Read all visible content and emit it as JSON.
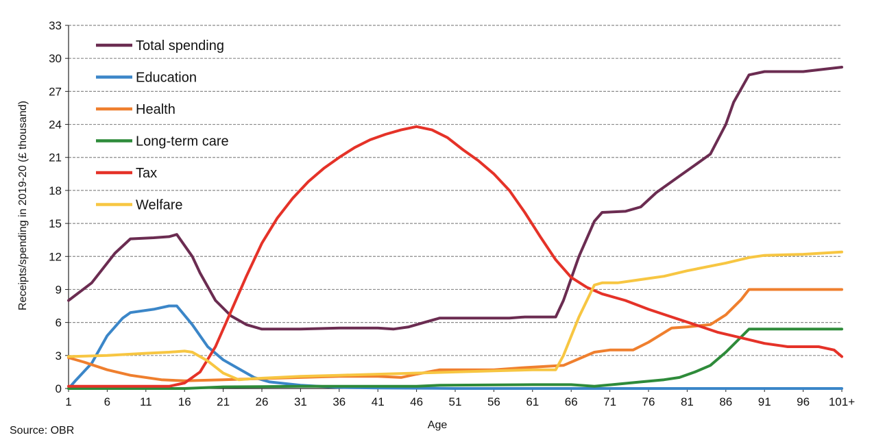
{
  "source": "Source: OBR",
  "chart_data": {
    "type": "line",
    "xlabel": "Age",
    "ylabel": "Receipts/spending in 2019-20 (£ thousand)",
    "x_ticks": [
      "1",
      "6",
      "11",
      "16",
      "21",
      "26",
      "31",
      "36",
      "41",
      "46",
      "51",
      "56",
      "61",
      "66",
      "71",
      "76",
      "81",
      "86",
      "91",
      "96",
      "101+"
    ],
    "xlim": [
      1,
      101
    ],
    "ylim": [
      0,
      33
    ],
    "y_ticks": [
      0,
      3,
      6,
      9,
      12,
      15,
      18,
      21,
      24,
      27,
      30,
      33
    ],
    "grid": "horizontal dashed",
    "legend": "top-left",
    "series": [
      {
        "name": "Total spending",
        "color": "#6b2c51",
        "points": [
          [
            1,
            8
          ],
          [
            4,
            9.6
          ],
          [
            7,
            12.3
          ],
          [
            9,
            13.6
          ],
          [
            12,
            13.7
          ],
          [
            14,
            13.8
          ],
          [
            15,
            14
          ],
          [
            17,
            12
          ],
          [
            18,
            10.5
          ],
          [
            20,
            8
          ],
          [
            22,
            6.6
          ],
          [
            24,
            5.8
          ],
          [
            26,
            5.4
          ],
          [
            31,
            5.4
          ],
          [
            36,
            5.5
          ],
          [
            41,
            5.5
          ],
          [
            43,
            5.4
          ],
          [
            45,
            5.6
          ],
          [
            47,
            6
          ],
          [
            49,
            6.4
          ],
          [
            56,
            6.4
          ],
          [
            58,
            6.4
          ],
          [
            60,
            6.5
          ],
          [
            64,
            6.5
          ],
          [
            65,
            8
          ],
          [
            67,
            12
          ],
          [
            69,
            15.2
          ],
          [
            70,
            16
          ],
          [
            73,
            16.1
          ],
          [
            75,
            16.5
          ],
          [
            77,
            17.8
          ],
          [
            80,
            19.3
          ],
          [
            82,
            20.3
          ],
          [
            84,
            21.3
          ],
          [
            86,
            24
          ],
          [
            87,
            26
          ],
          [
            89,
            28.5
          ],
          [
            91,
            28.8
          ],
          [
            96,
            28.8
          ],
          [
            101,
            29.2
          ]
        ]
      },
      {
        "name": "Education",
        "color": "#3b86c8",
        "points": [
          [
            1,
            0
          ],
          [
            2,
            0.8
          ],
          [
            4,
            2.3
          ],
          [
            6,
            4.8
          ],
          [
            8,
            6.4
          ],
          [
            9,
            6.9
          ],
          [
            12,
            7.2
          ],
          [
            14,
            7.5
          ],
          [
            15,
            7.5
          ],
          [
            17,
            5.8
          ],
          [
            19,
            3.8
          ],
          [
            21,
            2.6
          ],
          [
            23,
            1.8
          ],
          [
            25,
            1
          ],
          [
            27,
            0.6
          ],
          [
            31,
            0.3
          ],
          [
            36,
            0.1
          ],
          [
            41,
            0.05
          ],
          [
            51,
            0
          ],
          [
            101,
            0
          ]
        ]
      },
      {
        "name": "Health",
        "color": "#ef7f2e",
        "points": [
          [
            1,
            2.8
          ],
          [
            3,
            2.4
          ],
          [
            6,
            1.7
          ],
          [
            9,
            1.2
          ],
          [
            13,
            0.8
          ],
          [
            16,
            0.7
          ],
          [
            21,
            0.8
          ],
          [
            26,
            0.9
          ],
          [
            31,
            1
          ],
          [
            36,
            1.1
          ],
          [
            41,
            1.1
          ],
          [
            44,
            1
          ],
          [
            46,
            1.3
          ],
          [
            49,
            1.7
          ],
          [
            56,
            1.7
          ],
          [
            60,
            1.9
          ],
          [
            65,
            2.1
          ],
          [
            67,
            2.7
          ],
          [
            69,
            3.3
          ],
          [
            71,
            3.5
          ],
          [
            74,
            3.5
          ],
          [
            76,
            4.2
          ],
          [
            79,
            5.5
          ],
          [
            81,
            5.6
          ],
          [
            84,
            5.8
          ],
          [
            86,
            6.7
          ],
          [
            88,
            8.1
          ],
          [
            89,
            9
          ],
          [
            101,
            9
          ]
        ]
      },
      {
        "name": "Long-term care",
        "color": "#2e8b3a",
        "points": [
          [
            1,
            0
          ],
          [
            16,
            0
          ],
          [
            21,
            0.15
          ],
          [
            31,
            0.2
          ],
          [
            46,
            0.2
          ],
          [
            49,
            0.3
          ],
          [
            61,
            0.35
          ],
          [
            66,
            0.35
          ],
          [
            69,
            0.2
          ],
          [
            72,
            0.4
          ],
          [
            75,
            0.6
          ],
          [
            78,
            0.8
          ],
          [
            80,
            1
          ],
          [
            82,
            1.5
          ],
          [
            84,
            2.1
          ],
          [
            86,
            3.3
          ],
          [
            88,
            4.7
          ],
          [
            89,
            5.4
          ],
          [
            101,
            5.4
          ]
        ]
      },
      {
        "name": "Tax",
        "color": "#e53228",
        "points": [
          [
            1,
            0.2
          ],
          [
            6,
            0.2
          ],
          [
            11,
            0.2
          ],
          [
            14,
            0.2
          ],
          [
            16,
            0.5
          ],
          [
            18,
            1.5
          ],
          [
            20,
            3.8
          ],
          [
            22,
            7
          ],
          [
            24,
            10.2
          ],
          [
            26,
            13.2
          ],
          [
            28,
            15.5
          ],
          [
            30,
            17.3
          ],
          [
            32,
            18.8
          ],
          [
            34,
            20
          ],
          [
            36,
            21
          ],
          [
            38,
            21.9
          ],
          [
            40,
            22.6
          ],
          [
            42,
            23.1
          ],
          [
            44,
            23.5
          ],
          [
            46,
            23.8
          ],
          [
            48,
            23.5
          ],
          [
            50,
            22.8
          ],
          [
            52,
            21.7
          ],
          [
            54,
            20.7
          ],
          [
            56,
            19.5
          ],
          [
            58,
            18
          ],
          [
            60,
            16
          ],
          [
            62,
            13.8
          ],
          [
            64,
            11.7
          ],
          [
            66,
            10.1
          ],
          [
            68,
            9.2
          ],
          [
            70,
            8.6
          ],
          [
            73,
            8
          ],
          [
            76,
            7.2
          ],
          [
            79,
            6.5
          ],
          [
            82,
            5.8
          ],
          [
            85,
            5.1
          ],
          [
            88,
            4.6
          ],
          [
            91,
            4.1
          ],
          [
            94,
            3.8
          ],
          [
            98,
            3.8
          ],
          [
            100,
            3.5
          ],
          [
            101,
            2.9
          ]
        ]
      },
      {
        "name": "Welfare",
        "color": "#f7c642",
        "points": [
          [
            1,
            2.9
          ],
          [
            6,
            3
          ],
          [
            11,
            3.2
          ],
          [
            14,
            3.3
          ],
          [
            16,
            3.4
          ],
          [
            17,
            3.3
          ],
          [
            19,
            2.5
          ],
          [
            21,
            1.4
          ],
          [
            23,
            0.8
          ],
          [
            25,
            0.9
          ],
          [
            28,
            1
          ],
          [
            31,
            1.1
          ],
          [
            36,
            1.2
          ],
          [
            41,
            1.3
          ],
          [
            46,
            1.4
          ],
          [
            51,
            1.5
          ],
          [
            56,
            1.6
          ],
          [
            61,
            1.7
          ],
          [
            64,
            1.7
          ],
          [
            65,
            3
          ],
          [
            67,
            6.5
          ],
          [
            69,
            9.4
          ],
          [
            70,
            9.6
          ],
          [
            72,
            9.6
          ],
          [
            74,
            9.8
          ],
          [
            76,
            10
          ],
          [
            78,
            10.2
          ],
          [
            81,
            10.7
          ],
          [
            86,
            11.4
          ],
          [
            89,
            11.9
          ],
          [
            91,
            12.1
          ],
          [
            96,
            12.2
          ],
          [
            101,
            12.4
          ]
        ]
      }
    ]
  }
}
